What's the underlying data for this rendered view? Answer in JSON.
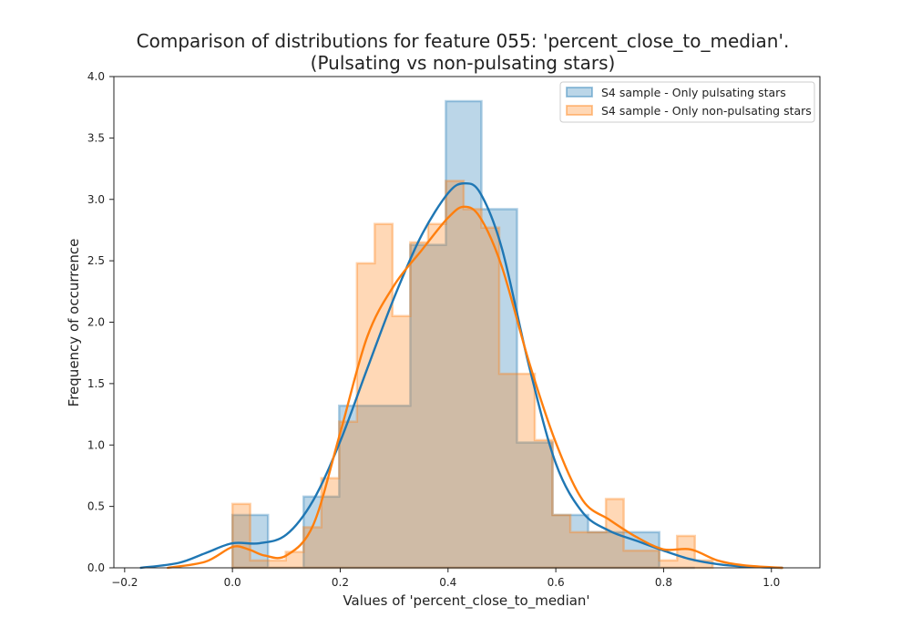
{
  "chart_data": {
    "type": "histogram",
    "title_line1": "Comparison of distributions for feature 055: 'percent_close_to_median'.",
    "title_line2": "(Pulsating vs non-pulsating stars)",
    "xlabel": "Values of 'percent_close_to_median'",
    "ylabel": "Frequency of occurrence",
    "xlim": [
      -0.22,
      1.09
    ],
    "ylim": [
      0,
      4.0
    ],
    "xticks": [
      -0.2,
      0.0,
      0.2,
      0.4,
      0.6,
      0.8,
      1.0
    ],
    "xtick_labels": [
      "−0.2",
      "0.0",
      "0.2",
      "0.4",
      "0.6",
      "0.8",
      "1.0"
    ],
    "yticks": [
      0.0,
      0.5,
      1.0,
      1.5,
      2.0,
      2.5,
      3.0,
      3.5,
      4.0
    ],
    "ytick_labels": [
      "0.0",
      "0.5",
      "1.0",
      "1.5",
      "2.0",
      "2.5",
      "3.0",
      "3.5",
      "4.0"
    ],
    "grid": false,
    "legend_position": "top-right",
    "series": [
      {
        "name": "S4 sample - Only pulsating stars",
        "color": "#1f77b4",
        "fill": "#b8d3e8",
        "bin_edges": [
          0.0,
          0.066,
          0.132,
          0.198,
          0.264,
          0.33,
          0.396,
          0.462,
          0.528,
          0.594,
          0.66,
          0.726,
          0.792,
          0.858
        ],
        "heights": [
          0.43,
          0.0,
          0.58,
          1.32,
          1.32,
          2.63,
          3.8,
          2.92,
          1.02,
          0.43,
          0.29,
          0.29,
          0.0
        ],
        "kde_x": [
          -0.17,
          -0.1,
          -0.05,
          0.0,
          0.05,
          0.1,
          0.15,
          0.2,
          0.25,
          0.3,
          0.35,
          0.4,
          0.43,
          0.46,
          0.5,
          0.55,
          0.6,
          0.65,
          0.7,
          0.75,
          0.8,
          0.85,
          0.9,
          0.95,
          1.02
        ],
        "kde_y": [
          0.0,
          0.04,
          0.12,
          0.2,
          0.2,
          0.27,
          0.55,
          1.03,
          1.62,
          2.2,
          2.7,
          3.05,
          3.13,
          3.05,
          2.6,
          1.65,
          0.85,
          0.45,
          0.3,
          0.22,
          0.14,
          0.07,
          0.03,
          0.01,
          0.0
        ]
      },
      {
        "name": "S4 sample - Only non-pulsating stars",
        "color": "#ff7f0e",
        "fill": "#fdd1a9",
        "bin_edges": [
          0.0,
          0.033,
          0.066,
          0.099,
          0.132,
          0.165,
          0.198,
          0.231,
          0.264,
          0.297,
          0.33,
          0.363,
          0.396,
          0.429,
          0.462,
          0.495,
          0.528,
          0.561,
          0.594,
          0.627,
          0.66,
          0.693,
          0.726,
          0.759,
          0.792,
          0.825,
          0.858,
          0.891
        ],
        "heights": [
          0.52,
          0.06,
          0.06,
          0.13,
          0.33,
          0.73,
          1.19,
          2.48,
          2.8,
          2.05,
          2.65,
          2.8,
          3.15,
          2.92,
          2.77,
          1.58,
          1.58,
          1.04,
          0.43,
          0.29,
          0.29,
          0.56,
          0.14,
          0.14,
          0.06,
          0.26,
          0.06
        ],
        "kde_x": [
          -0.12,
          -0.05,
          0.0,
          0.03,
          0.06,
          0.1,
          0.15,
          0.2,
          0.25,
          0.3,
          0.35,
          0.4,
          0.43,
          0.46,
          0.5,
          0.55,
          0.6,
          0.65,
          0.7,
          0.75,
          0.8,
          0.85,
          0.9,
          0.95,
          1.02
        ],
        "kde_y": [
          0.0,
          0.05,
          0.17,
          0.15,
          0.1,
          0.1,
          0.35,
          1.1,
          1.88,
          2.3,
          2.58,
          2.85,
          2.94,
          2.85,
          2.45,
          1.68,
          1.02,
          0.55,
          0.39,
          0.25,
          0.15,
          0.15,
          0.06,
          0.02,
          0.0
        ]
      }
    ]
  }
}
